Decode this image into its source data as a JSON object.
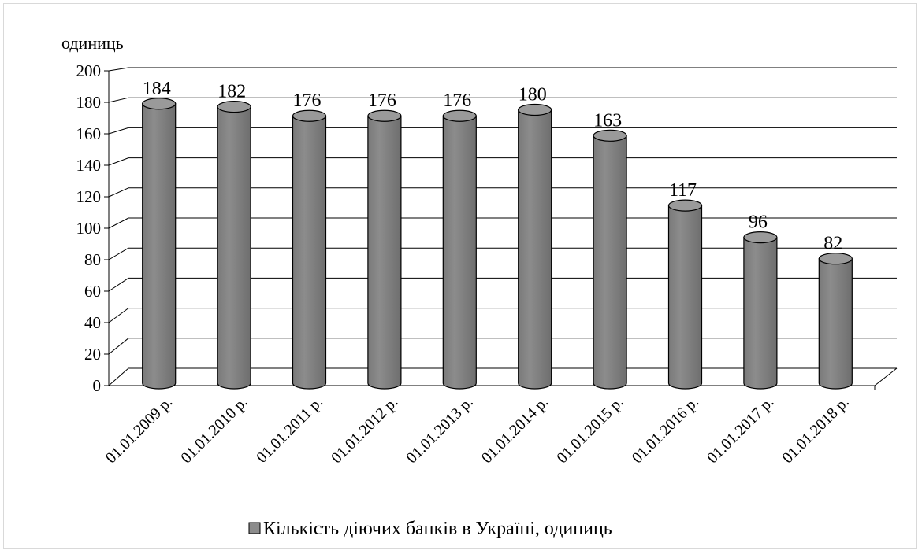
{
  "chart_data": {
    "type": "bar",
    "style": "3d-cylinder",
    "unit_label": "одиниць",
    "categories": [
      "01.01.2009 р.",
      "01.01.2010 р.",
      "01.01.2011 р.",
      "01.01.2012 р.",
      "01.01.2013 р.",
      "01.01.2014 р.",
      "01.01.2015 р.",
      "01.01.2016 р.",
      "01.01.2017 р.",
      "01.01.2018 р."
    ],
    "series": [
      {
        "name": "Кількість діючих банків в Україні, одиниць",
        "values": [
          184,
          182,
          176,
          176,
          176,
          180,
          163,
          117,
          96,
          82
        ],
        "color": "#8c8c8c"
      }
    ],
    "ylim": [
      0,
      200
    ],
    "yticks": [
      0,
      20,
      40,
      60,
      80,
      100,
      120,
      140,
      160,
      180,
      200
    ],
    "grid": true,
    "data_labels": true,
    "legend_position": "bottom"
  }
}
